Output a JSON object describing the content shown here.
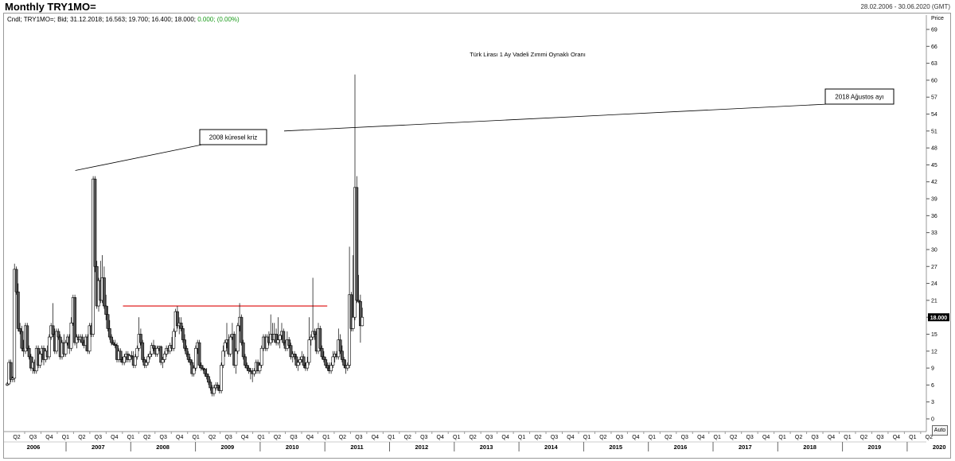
{
  "header": {
    "title": "Monthly TRY1MO=",
    "date_range": "28.02.2006 - 30.06.2020 (GMT)"
  },
  "info_line": {
    "prefix": "Cndl; TRY1MO=; Bid; 31.12.2018; 16.563; 19.700; 16.400; 18.000;",
    "change": "0.000; (0.00%)"
  },
  "price_label": "Price",
  "last_price": "18.000",
  "auto_button": "Auto",
  "colors": {
    "up_fill": "#ffffff",
    "down_fill": "#555555",
    "candle_stroke": "#000000",
    "support_line": "#e02020",
    "last_price_bg": "#000000"
  },
  "chart_data": {
    "type": "candlestick",
    "title": "Türk Lirası 1 Ay Vadeli Zımmi Oynaklı Oranı",
    "ylim": [
      -3,
      72
    ],
    "y_ticks": [
      0,
      3,
      6,
      9,
      12,
      15,
      18,
      21,
      24,
      27,
      30,
      33,
      36,
      39,
      42,
      45,
      48,
      51,
      54,
      57,
      60,
      63,
      66,
      69
    ],
    "x_quarters": [
      "Q2",
      "Q3",
      "Q4",
      "Q1",
      "Q2",
      "Q3",
      "Q4",
      "Q1",
      "Q2",
      "Q3",
      "Q4",
      "Q1",
      "Q2",
      "Q3",
      "Q4",
      "Q1",
      "Q2",
      "Q3",
      "Q4",
      "Q1",
      "Q2",
      "Q3",
      "Q4",
      "Q1",
      "Q2",
      "Q3",
      "Q4",
      "Q1",
      "Q2",
      "Q3",
      "Q4",
      "Q1",
      "Q2",
      "Q3",
      "Q4",
      "Q1",
      "Q2",
      "Q3",
      "Q4",
      "Q1",
      "Q2",
      "Q3",
      "Q4",
      "Q1",
      "Q2",
      "Q3",
      "Q4",
      "Q1",
      "Q2",
      "Q3",
      "Q4",
      "Q1",
      "Q2",
      "Q3",
      "Q4",
      "Q1",
      "Q2"
    ],
    "x_years": [
      "2006",
      "2007",
      "2008",
      "2009",
      "2010",
      "2011",
      "2012",
      "2013",
      "2014",
      "2015",
      "2016",
      "2017",
      "2018",
      "2019",
      "2020"
    ],
    "reference_line": {
      "value": 20,
      "from": "2011-07",
      "to": "2018-12"
    },
    "annotations": [
      {
        "text": "2008 küresel kriz",
        "target_date": "2008-10"
      },
      {
        "text": "2018 Ağustos ayı",
        "target_date": "2018-08"
      }
    ],
    "series_start": "2006-02",
    "candles": [
      [
        6,
        6.5,
        5.8,
        6.2
      ],
      [
        6.2,
        10.5,
        6,
        10
      ],
      [
        10,
        10.5,
        6.5,
        7
      ],
      [
        7,
        7.5,
        6.5,
        7.2
      ],
      [
        7.2,
        27.5,
        6.5,
        26.5
      ],
      [
        26.5,
        27,
        22,
        22.5
      ],
      [
        22.5,
        24,
        15.5,
        16
      ],
      [
        16,
        17,
        15,
        15.5
      ],
      [
        15.5,
        16.5,
        12,
        12.5
      ],
      [
        12.5,
        14,
        11,
        12
      ],
      [
        12,
        17,
        11.5,
        16.5
      ],
      [
        16.5,
        17,
        12,
        12.5
      ],
      [
        12.5,
        13,
        10.5,
        11
      ],
      [
        11,
        11.5,
        8.5,
        9
      ],
      [
        9,
        11,
        8,
        10
      ],
      [
        10,
        10.5,
        8,
        8.5
      ],
      [
        8.5,
        13,
        8,
        12.5
      ],
      [
        12.5,
        13,
        9,
        9.5
      ],
      [
        9.5,
        12,
        9,
        11.5
      ],
      [
        11.5,
        13,
        10,
        12.5
      ],
      [
        12.5,
        13,
        9.5,
        10.5
      ],
      [
        10.5,
        12.5,
        10,
        12
      ],
      [
        12,
        13,
        10.5,
        11
      ],
      [
        11,
        15,
        10.5,
        14.5
      ],
      [
        14.5,
        17,
        14,
        16.5
      ],
      [
        16.5,
        20.5,
        14.5,
        15
      ],
      [
        15,
        16,
        11.5,
        12
      ],
      [
        12,
        16,
        11.5,
        15.5
      ],
      [
        15.5,
        16,
        14,
        14.5
      ],
      [
        14.5,
        15,
        10.5,
        11
      ],
      [
        11,
        14,
        10.5,
        13.5
      ],
      [
        13.5,
        15,
        11,
        11.5
      ],
      [
        11.5,
        14,
        11,
        13.5
      ],
      [
        13.5,
        15,
        13,
        14.5
      ],
      [
        14.5,
        15,
        11.5,
        12.5
      ],
      [
        12.5,
        18,
        12,
        17
      ],
      [
        17,
        22,
        16.5,
        21.5
      ],
      [
        21.5,
        22,
        13,
        13.5
      ],
      [
        13.5,
        15,
        12.5,
        14.5
      ],
      [
        14.5,
        15,
        13.5,
        14
      ],
      [
        14,
        15,
        13.5,
        14.5
      ],
      [
        14.5,
        15,
        13,
        13.5
      ],
      [
        13.5,
        14,
        12.5,
        13
      ],
      [
        13,
        15,
        12,
        14.5
      ],
      [
        14.5,
        15,
        11.5,
        12
      ],
      [
        12,
        17,
        11.5,
        16.5
      ],
      [
        16.5,
        17,
        14.5,
        15
      ],
      [
        15,
        43,
        14.5,
        42.5
      ],
      [
        42.5,
        43,
        26,
        27
      ],
      [
        27,
        28,
        19.5,
        20
      ],
      [
        20,
        25,
        19,
        24.5
      ],
      [
        24.5,
        28,
        20.5,
        21
      ],
      [
        21,
        29,
        20.5,
        25
      ],
      [
        25,
        27,
        19.5,
        20
      ],
      [
        20,
        22,
        17.5,
        18.5
      ],
      [
        18.5,
        20,
        15.5,
        16
      ],
      [
        16,
        17.5,
        14,
        14.5
      ],
      [
        14.5,
        15,
        13,
        13.5
      ],
      [
        13.5,
        14,
        13,
        13.2
      ],
      [
        13.2,
        14,
        12.5,
        13
      ],
      [
        13,
        13.5,
        10,
        10.5
      ],
      [
        10.5,
        12.5,
        10,
        12
      ],
      [
        12,
        12.5,
        10,
        10.5
      ],
      [
        10.5,
        11,
        9.5,
        10
      ],
      [
        10,
        11.5,
        9.5,
        11
      ],
      [
        11,
        12,
        10,
        11.5
      ],
      [
        11.5,
        12,
        10,
        10.5
      ],
      [
        10.5,
        11.5,
        10,
        11.2
      ],
      [
        11.2,
        12,
        10.5,
        11
      ],
      [
        11,
        12,
        9,
        9.5
      ],
      [
        9.5,
        11.5,
        9,
        11
      ],
      [
        11,
        13,
        10.5,
        12.5
      ],
      [
        12.5,
        18,
        12,
        15
      ],
      [
        15,
        16,
        13,
        13.5
      ],
      [
        13.5,
        14,
        10,
        10.5
      ],
      [
        10.5,
        11,
        9,
        9.5
      ],
      [
        9.5,
        10.5,
        9,
        10
      ],
      [
        10,
        11.5,
        9.5,
        11
      ],
      [
        11,
        12,
        10.5,
        11.5
      ],
      [
        11.5,
        13.5,
        11,
        13
      ],
      [
        13,
        14,
        12,
        12.5
      ],
      [
        12.5,
        13,
        11,
        11.5
      ],
      [
        11.5,
        13,
        11,
        12.5
      ],
      [
        12.5,
        13,
        12,
        12.8
      ],
      [
        12.8,
        13,
        9.5,
        10
      ],
      [
        10,
        11,
        9,
        10.5
      ],
      [
        10.5,
        12,
        10,
        11.5
      ],
      [
        11.5,
        13,
        11,
        12.5
      ],
      [
        12.5,
        13,
        11.5,
        12
      ],
      [
        12,
        13.5,
        11.5,
        13
      ],
      [
        13,
        14.5,
        12,
        12.5
      ],
      [
        12.5,
        16,
        12,
        15.5
      ],
      [
        15.5,
        19.5,
        14.5,
        19
      ],
      [
        19,
        20,
        16,
        16.5
      ],
      [
        16.5,
        18,
        15,
        17
      ],
      [
        17,
        18,
        15.5,
        16
      ],
      [
        16,
        16.5,
        13.5,
        14
      ],
      [
        14,
        15,
        12,
        12.5
      ],
      [
        12.5,
        13,
        11,
        11.5
      ],
      [
        11.5,
        12,
        10,
        10.5
      ],
      [
        10.5,
        11,
        9.5,
        10
      ],
      [
        10,
        10.5,
        7.5,
        8
      ],
      [
        8,
        9.5,
        7.5,
        9
      ],
      [
        9,
        13,
        8.5,
        12.5
      ],
      [
        12.5,
        14,
        11.5,
        13.5
      ],
      [
        13.5,
        14,
        9,
        9.5
      ],
      [
        9.5,
        10,
        8.5,
        9
      ],
      [
        9,
        9.5,
        8.5,
        8.8
      ],
      [
        8.8,
        9,
        7.5,
        8
      ],
      [
        8,
        9,
        7,
        7.5
      ],
      [
        7.5,
        8,
        6,
        6.5
      ],
      [
        6.5,
        7,
        5,
        5.5
      ],
      [
        5.5,
        6,
        4,
        4.5
      ],
      [
        4.5,
        6,
        4,
        5.5
      ],
      [
        5.5,
        6.5,
        5,
        6
      ],
      [
        6,
        6.5,
        5,
        5.5
      ],
      [
        5.5,
        6,
        4.5,
        5
      ],
      [
        5,
        10,
        4.5,
        9.5
      ],
      [
        9.5,
        13,
        9,
        12
      ],
      [
        12,
        14,
        11,
        13.5
      ],
      [
        13.5,
        17,
        12.5,
        14
      ],
      [
        14,
        15,
        11,
        11.5
      ],
      [
        11.5,
        15,
        11,
        14.5
      ],
      [
        14.5,
        17,
        14,
        15
      ],
      [
        15,
        15.5,
        9,
        9.5
      ],
      [
        9.5,
        12.5,
        8,
        12
      ],
      [
        12,
        17,
        11.5,
        16.5
      ],
      [
        16.5,
        20.5,
        15.5,
        18
      ],
      [
        18,
        18.5,
        13,
        13.5
      ],
      [
        13.5,
        14,
        10.5,
        11
      ],
      [
        11,
        11.5,
        9,
        9.5
      ],
      [
        9.5,
        10,
        8.5,
        9
      ],
      [
        9,
        9.5,
        8,
        8.5
      ],
      [
        8.5,
        9,
        7,
        8.5
      ],
      [
        8.5,
        9,
        6.5,
        8
      ],
      [
        8,
        9,
        7.5,
        8.5
      ],
      [
        8.5,
        10.5,
        8,
        10
      ],
      [
        10,
        10.5,
        8,
        8.5
      ],
      [
        8.5,
        10,
        8,
        9.5
      ],
      [
        9.5,
        13,
        9,
        12.5
      ],
      [
        12.5,
        15,
        12,
        14.5
      ],
      [
        14.5,
        15,
        12,
        12.5
      ],
      [
        12.5,
        15,
        12,
        14.5
      ],
      [
        14.5,
        15.5,
        13,
        13.5
      ],
      [
        13.5,
        18.5,
        13,
        15
      ],
      [
        15,
        17,
        13.5,
        14
      ],
      [
        14,
        17,
        13.5,
        15
      ],
      [
        15,
        16,
        13,
        13.5
      ],
      [
        13.5,
        18,
        13,
        14
      ],
      [
        14,
        15,
        12.5,
        14.8
      ],
      [
        14.8,
        17,
        14,
        15.5
      ],
      [
        15.5,
        16,
        13,
        13.5
      ],
      [
        13.5,
        14,
        12,
        12.5
      ],
      [
        12.5,
        15.5,
        12,
        14
      ],
      [
        14,
        14.5,
        12.5,
        13
      ],
      [
        13,
        13.5,
        10.5,
        11
      ],
      [
        11,
        12,
        10,
        11.5
      ],
      [
        11.5,
        12,
        10.5,
        11
      ],
      [
        11,
        11.5,
        9,
        9.5
      ],
      [
        9.5,
        10.5,
        8.5,
        10
      ],
      [
        10,
        11,
        9.5,
        10.5
      ],
      [
        10.5,
        12,
        10,
        11
      ],
      [
        11,
        11.5,
        9,
        9.5
      ],
      [
        9.5,
        10,
        8.5,
        9
      ],
      [
        9,
        11,
        8.5,
        10
      ],
      [
        10,
        18,
        9.5,
        14
      ],
      [
        14,
        15,
        13,
        14.5
      ],
      [
        14.5,
        25,
        14,
        15.5
      ],
      [
        15.5,
        16,
        14,
        15
      ],
      [
        15,
        16,
        11.5,
        12
      ],
      [
        12,
        17,
        11.5,
        16
      ],
      [
        16,
        16.5,
        12,
        12.5
      ],
      [
        12.5,
        13,
        10.5,
        11
      ],
      [
        11,
        12,
        10,
        10.5
      ],
      [
        10.5,
        11,
        9,
        9.5
      ],
      [
        9.5,
        10,
        8.5,
        9
      ],
      [
        9,
        10,
        8,
        8.5
      ],
      [
        8.5,
        10,
        8,
        9.5
      ],
      [
        9.5,
        12,
        9,
        11
      ],
      [
        11,
        12,
        10,
        11.5
      ],
      [
        11.5,
        12,
        10.5,
        11
      ],
      [
        11,
        16,
        10.5,
        14
      ],
      [
        14,
        15,
        11.5,
        12
      ],
      [
        12,
        13,
        10,
        10.5
      ],
      [
        10.5,
        11,
        9,
        9.5
      ],
      [
        9.5,
        10.5,
        8,
        9
      ],
      [
        9,
        10,
        8.5,
        9.5
      ],
      [
        9.5,
        30.5,
        9,
        22
      ],
      [
        22,
        22.5,
        15.5,
        16
      ],
      [
        16,
        29,
        15.5,
        18
      ],
      [
        18,
        61,
        17.5,
        41
      ],
      [
        41,
        43,
        20.5,
        21
      ],
      [
        21,
        25.5,
        20.5,
        20.8
      ],
      [
        20.8,
        22,
        13.5,
        16.5
      ],
      [
        16.5,
        19.7,
        16.4,
        18
      ]
    ]
  }
}
